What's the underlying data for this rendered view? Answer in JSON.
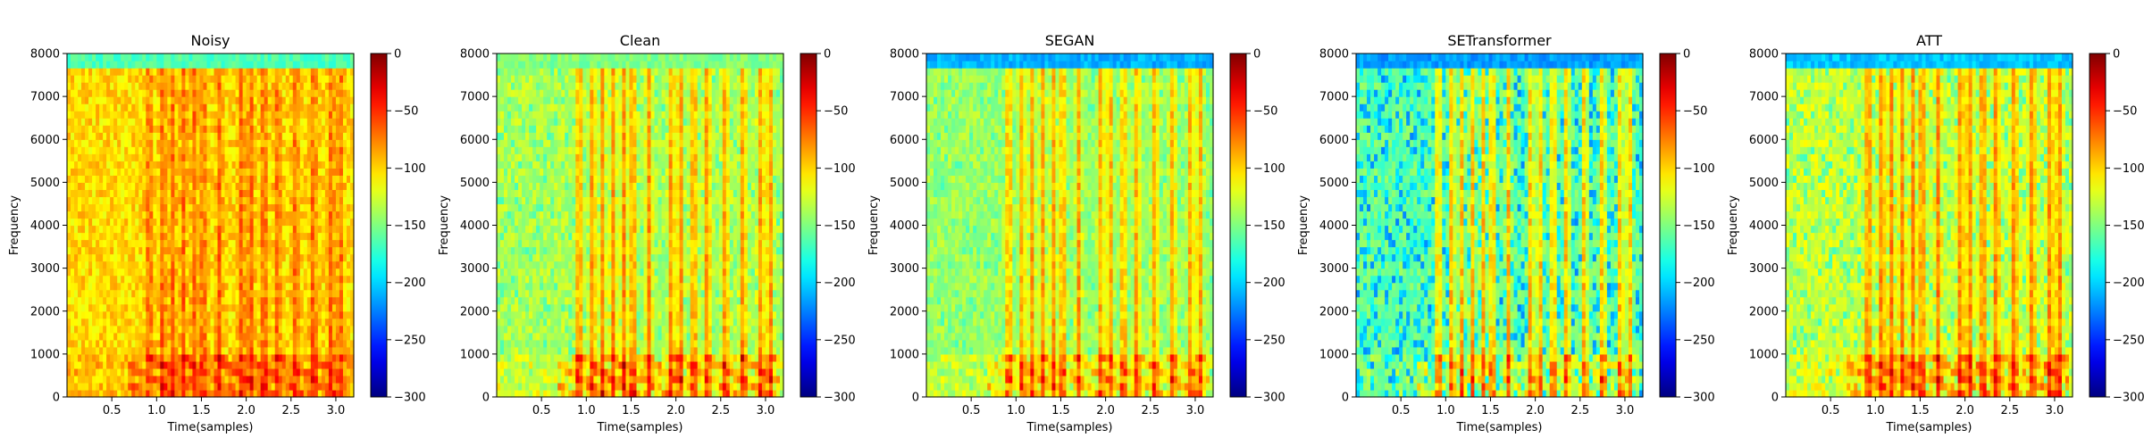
{
  "chart_data": [
    {
      "type": "heatmap",
      "title": "Noisy",
      "xlabel": "Time(samples)",
      "ylabel": "Frequency",
      "xlim": [
        0,
        3.2
      ],
      "ylim": [
        0,
        8000
      ],
      "xticks": [
        "0.5",
        "1.0",
        "1.5",
        "2.0",
        "2.5",
        "3.0"
      ],
      "yticks": [
        "0",
        "1000",
        "2000",
        "3000",
        "4000",
        "5000",
        "6000",
        "7000",
        "8000"
      ],
      "colorbar": {
        "range": [
          -300,
          0
        ],
        "ticks": [
          "0",
          "−50",
          "−100",
          "−150",
          "−200",
          "−250",
          "−300"
        ],
        "colormap": "jet"
      },
      "appearance": "Dense orange-yellow energy across all frequencies; vertical speech bands visible around 0.9-3.1; dark red harmonics below 1000; cyan band near 8000."
    },
    {
      "type": "heatmap",
      "title": "Clean",
      "xlabel": "Time(samples)",
      "ylabel": "Frequency",
      "xlim": [
        0,
        3.2
      ],
      "ylim": [
        0,
        8000
      ],
      "xticks": [
        "0.5",
        "1.0",
        "1.5",
        "2.0",
        "2.5",
        "3.0"
      ],
      "yticks": [
        "0",
        "1000",
        "2000",
        "3000",
        "4000",
        "5000",
        "6000",
        "7000",
        "8000"
      ],
      "colorbar": {
        "range": [
          -300,
          0
        ],
        "ticks": [
          "0",
          "−50",
          "−100",
          "−150",
          "−200",
          "−250",
          "−300"
        ],
        "colormap": "jet"
      },
      "appearance": "Yellow-green background with orange speech segments; brighter vertical bands; red harmonics in low frequencies."
    },
    {
      "type": "heatmap",
      "title": "SEGAN",
      "xlabel": "Time(samples)",
      "ylabel": "Frequency",
      "xlim": [
        0,
        3.2
      ],
      "ylim": [
        0,
        8000
      ],
      "xticks": [
        "0.5",
        "1.0",
        "1.5",
        "2.0",
        "2.5",
        "3.0"
      ],
      "yticks": [
        "0",
        "1000",
        "2000",
        "3000",
        "4000",
        "5000",
        "6000",
        "7000",
        "8000"
      ],
      "colorbar": {
        "range": [
          -300,
          0
        ],
        "ticks": [
          "0",
          "−50",
          "−100",
          "−150",
          "−200",
          "−250",
          "−300"
        ],
        "colormap": "jet"
      },
      "appearance": "Green-yellow background, orange speech bands, blue edge at top near 8000."
    },
    {
      "type": "heatmap",
      "title": "SETransformer",
      "xlabel": "Time(samples)",
      "ylabel": "Frequency",
      "xlim": [
        0,
        3.2
      ],
      "ylim": [
        0,
        8000
      ],
      "xticks": [
        "0.5",
        "1.0",
        "1.5",
        "2.0",
        "2.5",
        "3.0"
      ],
      "yticks": [
        "0",
        "1000",
        "2000",
        "3000",
        "4000",
        "5000",
        "6000",
        "7000",
        "8000"
      ],
      "colorbar": {
        "range": [
          -300,
          0
        ],
        "ticks": [
          "0",
          "−50",
          "−100",
          "−150",
          "−200",
          "−250",
          "−300"
        ],
        "colormap": "jet"
      },
      "appearance": "Greener background with sparse orange patches, strong vertical speech bands, blue top band."
    },
    {
      "type": "heatmap",
      "title": "ATT",
      "xlabel": "Time(samples)",
      "ylabel": "Frequency",
      "xlim": [
        0,
        3.2
      ],
      "ylim": [
        0,
        8000
      ],
      "xticks": [
        "0.5",
        "1.0",
        "1.5",
        "2.0",
        "2.5",
        "3.0"
      ],
      "yticks": [
        "0",
        "1000",
        "2000",
        "3000",
        "4000",
        "5000",
        "6000",
        "7000",
        "8000"
      ],
      "colorbar": {
        "range": [
          -300,
          0
        ],
        "ticks": [
          "0",
          "−50",
          "−100",
          "−150",
          "−200",
          "−250",
          "−300"
        ],
        "colormap": "jet"
      },
      "appearance": "Yellow-orange texture similar to Clean with green patches; red low-frequency harmonics; blue top band."
    }
  ]
}
